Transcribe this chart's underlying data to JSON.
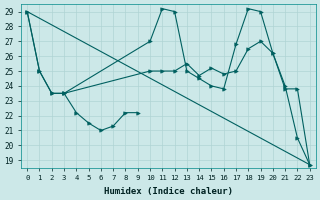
{
  "bg_color": "#cce8e8",
  "grid_color": "#b0d4d4",
  "line_color": "#006060",
  "xlabel": "Humidex (Indice chaleur)",
  "xlim": [
    -0.5,
    23.5
  ],
  "ylim": [
    18.5,
    29.5
  ],
  "yticks": [
    19,
    20,
    21,
    22,
    23,
    24,
    25,
    26,
    27,
    28,
    29
  ],
  "xticks": [
    0,
    1,
    2,
    3,
    4,
    5,
    6,
    7,
    8,
    9,
    10,
    11,
    12,
    13,
    14,
    15,
    16,
    17,
    18,
    19,
    20,
    21,
    22,
    23
  ],
  "series": [
    {
      "x": [
        0,
        1,
        2,
        3,
        10,
        11,
        12,
        13,
        14,
        15,
        16,
        17,
        18,
        19,
        20,
        21,
        22,
        23
      ],
      "y": [
        29,
        25,
        23.5,
        23.5,
        27,
        29.2,
        29,
        25,
        24.5,
        24.0,
        23.8,
        26.8,
        29.2,
        29,
        26.2,
        24,
        20.5,
        18.7
      ],
      "markers": true
    },
    {
      "x": [
        0,
        1,
        2,
        3,
        10,
        11,
        12,
        13,
        14,
        15,
        16,
        17,
        18,
        19,
        20,
        21,
        22,
        23
      ],
      "y": [
        29,
        25,
        23.5,
        23.5,
        25,
        25,
        25,
        25.5,
        24.7,
        25.2,
        24.8,
        25.0,
        26.5,
        27,
        26.2,
        23.8,
        23.8,
        18.7
      ],
      "markers": true
    },
    {
      "x": [
        3,
        4,
        5,
        6,
        7,
        8,
        9
      ],
      "y": [
        23.5,
        22.2,
        21.5,
        21.0,
        21.3,
        22.2,
        22.2
      ],
      "markers": true
    },
    {
      "x": [
        0,
        23
      ],
      "y": [
        29,
        18.7
      ],
      "markers": false
    }
  ]
}
